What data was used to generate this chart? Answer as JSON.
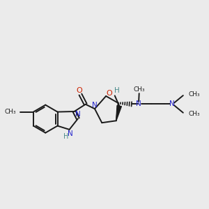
{
  "bg_color": "#ebebeb",
  "bond_color": "#1a1a1a",
  "N_color": "#2222cc",
  "O_color": "#cc2200",
  "H_color": "#4a8a8a",
  "figsize": [
    3.0,
    3.0
  ],
  "dpi": 100,
  "xlim": [
    0,
    10
  ],
  "ylim": [
    0,
    10
  ]
}
